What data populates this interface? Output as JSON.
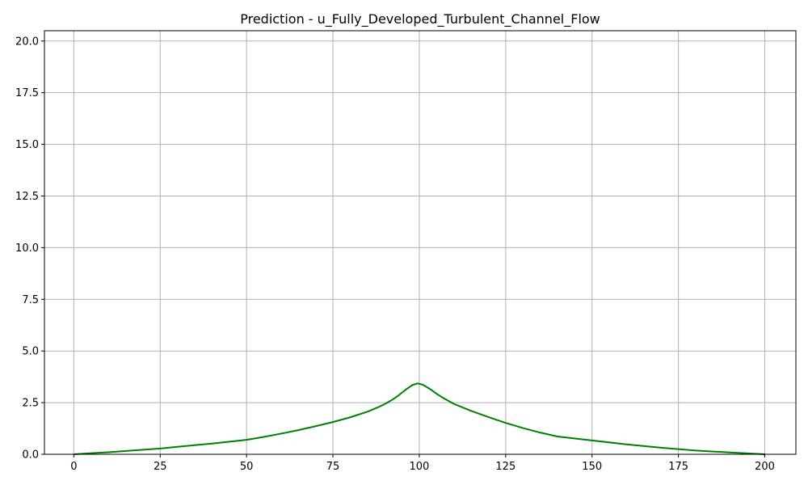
{
  "chart_data": {
    "type": "line",
    "title": "Prediction - u_Fully_Developed_Turbulent_Channel_Flow",
    "xlabel": "",
    "ylabel": "",
    "xlim": [
      -8.5,
      209
    ],
    "ylim": [
      0,
      20.5
    ],
    "xticks": [
      0,
      25,
      50,
      75,
      100,
      125,
      150,
      175,
      200
    ],
    "xtick_labels": [
      "0",
      "25",
      "50",
      "75",
      "100",
      "125",
      "150",
      "175",
      "200"
    ],
    "yticks": [
      0,
      2.5,
      5,
      7.5,
      10,
      12.5,
      15,
      17.5,
      20
    ],
    "ytick_labels": [
      "0.0",
      "2.5",
      "5.0",
      "7.5",
      "10.0",
      "12.5",
      "15.0",
      "17.5",
      "20.0"
    ],
    "grid": true,
    "legend": "none",
    "series": [
      {
        "color": "#008000",
        "x": [
          0,
          10,
          20,
          25,
          30,
          40,
          50,
          55,
          60,
          65,
          70,
          75,
          80,
          85,
          88,
          90,
          92,
          94,
          96,
          98,
          99.5,
          101,
          103,
          105,
          107,
          110,
          115,
          120,
          125,
          130,
          135,
          140,
          150,
          160,
          170,
          175,
          180,
          190,
          200
        ],
        "y": [
          0,
          0.1,
          0.22,
          0.28,
          0.36,
          0.52,
          0.7,
          0.84,
          1.0,
          1.17,
          1.36,
          1.56,
          1.79,
          2.06,
          2.27,
          2.43,
          2.62,
          2.85,
          3.12,
          3.35,
          3.43,
          3.37,
          3.17,
          2.93,
          2.72,
          2.44,
          2.1,
          1.8,
          1.52,
          1.27,
          1.05,
          0.86,
          0.67,
          0.48,
          0.32,
          0.25,
          0.18,
          0.09,
          0.0
        ]
      }
    ]
  }
}
